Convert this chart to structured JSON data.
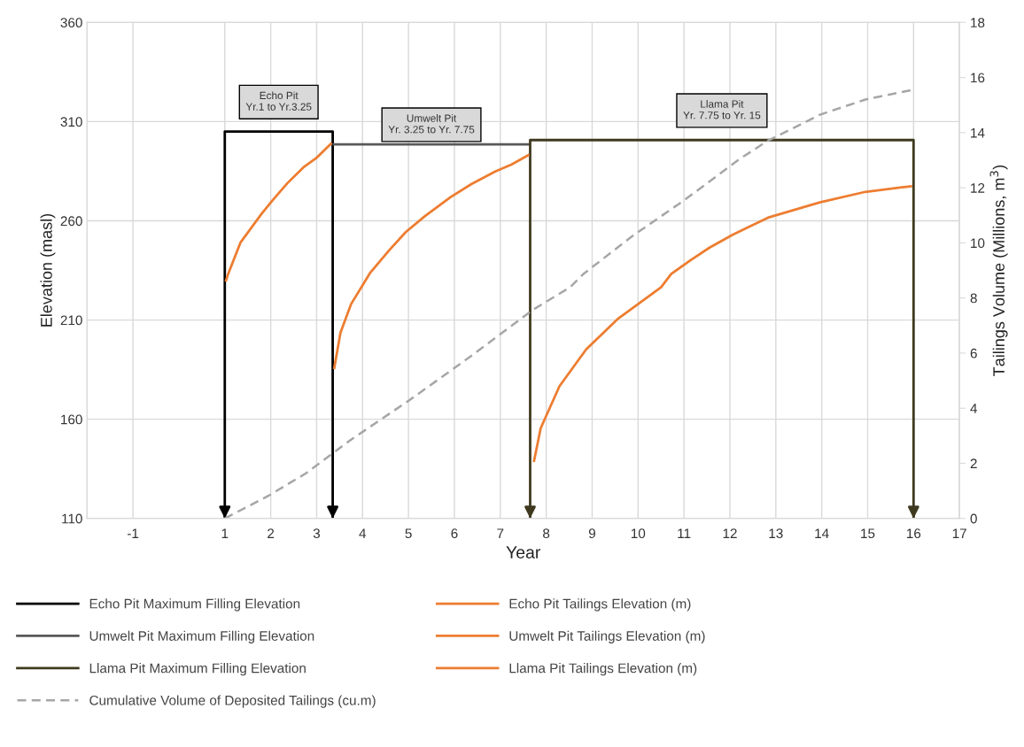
{
  "chart_data": {
    "type": "line",
    "xlabel": "Year",
    "ylabel": "Elevation (masl)",
    "y2label": "Tailings Volume (Millions, m$^{3}$)",
    "xlim": [
      -2,
      17
    ],
    "xticks": [
      -1,
      1,
      2,
      3,
      4,
      5,
      6,
      7,
      8,
      9,
      10,
      11,
      12,
      13,
      14,
      15,
      16,
      17
    ],
    "ylim": [
      110,
      360
    ],
    "yticks": [
      110,
      160,
      210,
      260,
      310,
      360
    ],
    "y2lim": [
      0,
      18
    ],
    "y2ticks": [
      0,
      2,
      4,
      6,
      8,
      10,
      12,
      14,
      16,
      18
    ],
    "grid": true,
    "legend": "bottom",
    "series": [
      {
        "name": "Echo Pit Maximum Filling Elevation",
        "color": "#000000",
        "x": [
          1.0,
          1.0,
          3.35,
          3.35
        ],
        "values": [
          110,
          305,
          305,
          110
        ]
      },
      {
        "name": "Umwelt Pit Maximum Filling Elevation",
        "color": "#595959",
        "x": [
          3.35,
          7.65
        ],
        "values": [
          298.5,
          298.5
        ]
      },
      {
        "name": "Llama Pit Maximum Filling Elevation",
        "color": "#3f3a1f",
        "x": [
          7.65,
          7.65,
          16.0,
          16.0
        ],
        "values": [
          110,
          300.7,
          300.7,
          110
        ]
      },
      {
        "name": "Cumulative Volume of Deposited Tailings (cu.m)",
        "color": "#a6a6a6",
        "axis": "y2",
        "line_style": "dashed",
        "x": [
          1.0,
          1.95,
          2.76,
          3.75,
          5.03,
          6.31,
          7.71,
          8.52,
          8.81,
          9.87,
          11.0,
          12.2,
          12.83,
          13.96,
          14.95,
          15.97
        ],
        "values": [
          0,
          0.82,
          1.63,
          2.86,
          4.3,
          5.83,
          7.57,
          8.39,
          8.87,
          10.24,
          11.54,
          13.03,
          13.71,
          14.65,
          15.2,
          15.55
        ]
      },
      {
        "name": "Echo Pit Tailings Elevation (m)",
        "color": "#ed7d31",
        "x": [
          1.02,
          1.07,
          1.34,
          1.8,
          2.04,
          2.36,
          2.71,
          2.99,
          3.33
        ],
        "values": [
          229.4,
          233,
          249,
          263.5,
          270.3,
          278.9,
          286.9,
          291.6,
          299.3
        ]
      },
      {
        "name": "Umwelt Pit Tailings Elevation (m)",
        "color": "#ed7d31",
        "x": [
          3.38,
          3.52,
          3.75,
          4.16,
          4.57,
          4.94,
          5.36,
          5.92,
          6.37,
          6.89,
          7.24,
          7.63
        ],
        "values": [
          185.3,
          203.7,
          218.0,
          233.6,
          244.9,
          254.3,
          262.4,
          272.0,
          278.5,
          284.9,
          288.3,
          293.3
        ]
      },
      {
        "name": "Llama Pit Tailings Elevation (m)",
        "color": "#ed7d31",
        "x": [
          7.73,
          7.88,
          8.29,
          8.87,
          9.57,
          10.5,
          10.72,
          11.14,
          11.55,
          12.06,
          12.83,
          13.96,
          14.95,
          15.97
        ],
        "values": [
          138.4,
          155.5,
          176.7,
          195.2,
          210.8,
          226.5,
          233.2,
          240.1,
          246.4,
          253.0,
          261.6,
          269.3,
          274.6,
          277.5
        ]
      }
    ],
    "annotations": [
      "Echo Pit\nYr.1 to Yr.3.25",
      "Umwelt Pit\nYr. 3.25 to Yr. 7.75",
      "Llama Pit\nYr. 7.75 to Yr. 15"
    ]
  }
}
